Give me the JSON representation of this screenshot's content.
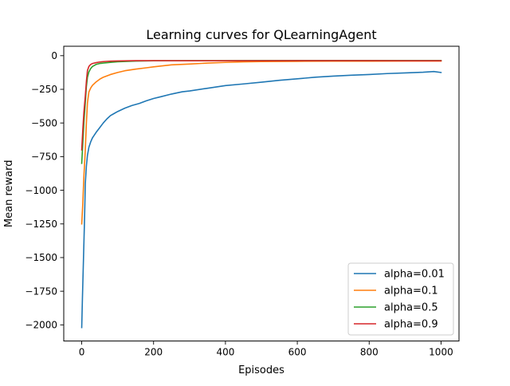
{
  "chart_data": {
    "type": "line",
    "title": "Learning curves for QLearningAgent",
    "xlabel": "Episodes",
    "ylabel": "Mean reward",
    "xlim": [
      -50,
      1050
    ],
    "ylim": [
      -2120,
      70
    ],
    "xticks": [
      0,
      200,
      400,
      600,
      800,
      1000
    ],
    "xtick_labels": [
      "0",
      "200",
      "400",
      "600",
      "800",
      "1000"
    ],
    "yticks": [
      0,
      -250,
      -500,
      -750,
      -1000,
      -1250,
      -1500,
      -1750,
      -2000
    ],
    "ytick_labels": [
      "0",
      "−250",
      "−500",
      "−750",
      "−1000",
      "−1250",
      "−1500",
      "−1750",
      "−2000"
    ],
    "grid": false,
    "legend_position": "lower right",
    "series": [
      {
        "name": "alpha=0.01",
        "color": "#1f77b4",
        "points": [
          [
            0,
            -2020
          ],
          [
            2,
            -1800
          ],
          [
            5,
            -1500
          ],
          [
            8,
            -1200
          ],
          [
            10,
            -950
          ],
          [
            13,
            -820
          ],
          [
            16,
            -740
          ],
          [
            20,
            -680
          ],
          [
            25,
            -640
          ],
          [
            30,
            -610
          ],
          [
            40,
            -570
          ],
          [
            50,
            -535
          ],
          [
            60,
            -500
          ],
          [
            70,
            -470
          ],
          [
            80,
            -445
          ],
          [
            90,
            -430
          ],
          [
            100,
            -415
          ],
          [
            120,
            -390
          ],
          [
            140,
            -370
          ],
          [
            160,
            -355
          ],
          [
            180,
            -335
          ],
          [
            200,
            -318
          ],
          [
            220,
            -305
          ],
          [
            250,
            -285
          ],
          [
            280,
            -268
          ],
          [
            300,
            -262
          ],
          [
            350,
            -242
          ],
          [
            400,
            -222
          ],
          [
            450,
            -210
          ],
          [
            500,
            -197
          ],
          [
            550,
            -183
          ],
          [
            600,
            -172
          ],
          [
            650,
            -160
          ],
          [
            700,
            -152
          ],
          [
            750,
            -145
          ],
          [
            800,
            -140
          ],
          [
            850,
            -133
          ],
          [
            900,
            -128
          ],
          [
            950,
            -123
          ],
          [
            980,
            -118
          ],
          [
            1000,
            -125
          ]
        ]
      },
      {
        "name": "alpha=0.1",
        "color": "#ff7f0e",
        "points": [
          [
            0,
            -1250
          ],
          [
            3,
            -1100
          ],
          [
            6,
            -900
          ],
          [
            10,
            -700
          ],
          [
            13,
            -500
          ],
          [
            16,
            -350
          ],
          [
            20,
            -270
          ],
          [
            25,
            -240
          ],
          [
            30,
            -220
          ],
          [
            40,
            -195
          ],
          [
            50,
            -175
          ],
          [
            60,
            -160
          ],
          [
            80,
            -140
          ],
          [
            100,
            -125
          ],
          [
            120,
            -112
          ],
          [
            150,
            -100
          ],
          [
            180,
            -90
          ],
          [
            200,
            -83
          ],
          [
            250,
            -68
          ],
          [
            300,
            -62
          ],
          [
            350,
            -55
          ],
          [
            400,
            -50
          ],
          [
            450,
            -46
          ],
          [
            500,
            -44
          ],
          [
            600,
            -42
          ],
          [
            700,
            -41
          ],
          [
            800,
            -41
          ],
          [
            900,
            -40
          ],
          [
            1000,
            -40
          ]
        ]
      },
      {
        "name": "alpha=0.5",
        "color": "#2ca02c",
        "points": [
          [
            0,
            -800
          ],
          [
            3,
            -650
          ],
          [
            6,
            -500
          ],
          [
            10,
            -350
          ],
          [
            13,
            -230
          ],
          [
            16,
            -160
          ],
          [
            20,
            -120
          ],
          [
            25,
            -95
          ],
          [
            30,
            -80
          ],
          [
            40,
            -65
          ],
          [
            50,
            -58
          ],
          [
            60,
            -55
          ],
          [
            80,
            -50
          ],
          [
            100,
            -45
          ],
          [
            150,
            -40
          ],
          [
            200,
            -38
          ],
          [
            300,
            -37
          ],
          [
            400,
            -37
          ],
          [
            500,
            -36
          ],
          [
            600,
            -36
          ],
          [
            700,
            -36
          ],
          [
            800,
            -36
          ],
          [
            900,
            -36
          ],
          [
            1000,
            -36
          ]
        ]
      },
      {
        "name": "alpha=0.9",
        "color": "#d62728",
        "points": [
          [
            0,
            -700
          ],
          [
            3,
            -550
          ],
          [
            6,
            -420
          ],
          [
            10,
            -300
          ],
          [
            13,
            -190
          ],
          [
            16,
            -110
          ],
          [
            20,
            -80
          ],
          [
            25,
            -65
          ],
          [
            30,
            -58
          ],
          [
            40,
            -52
          ],
          [
            50,
            -47
          ],
          [
            60,
            -44
          ],
          [
            80,
            -41
          ],
          [
            100,
            -39
          ],
          [
            150,
            -37
          ],
          [
            200,
            -37
          ],
          [
            300,
            -38
          ],
          [
            400,
            -38
          ],
          [
            500,
            -38
          ],
          [
            600,
            -37
          ],
          [
            700,
            -37
          ],
          [
            800,
            -37
          ],
          [
            900,
            -38
          ],
          [
            1000,
            -38
          ]
        ]
      }
    ]
  }
}
